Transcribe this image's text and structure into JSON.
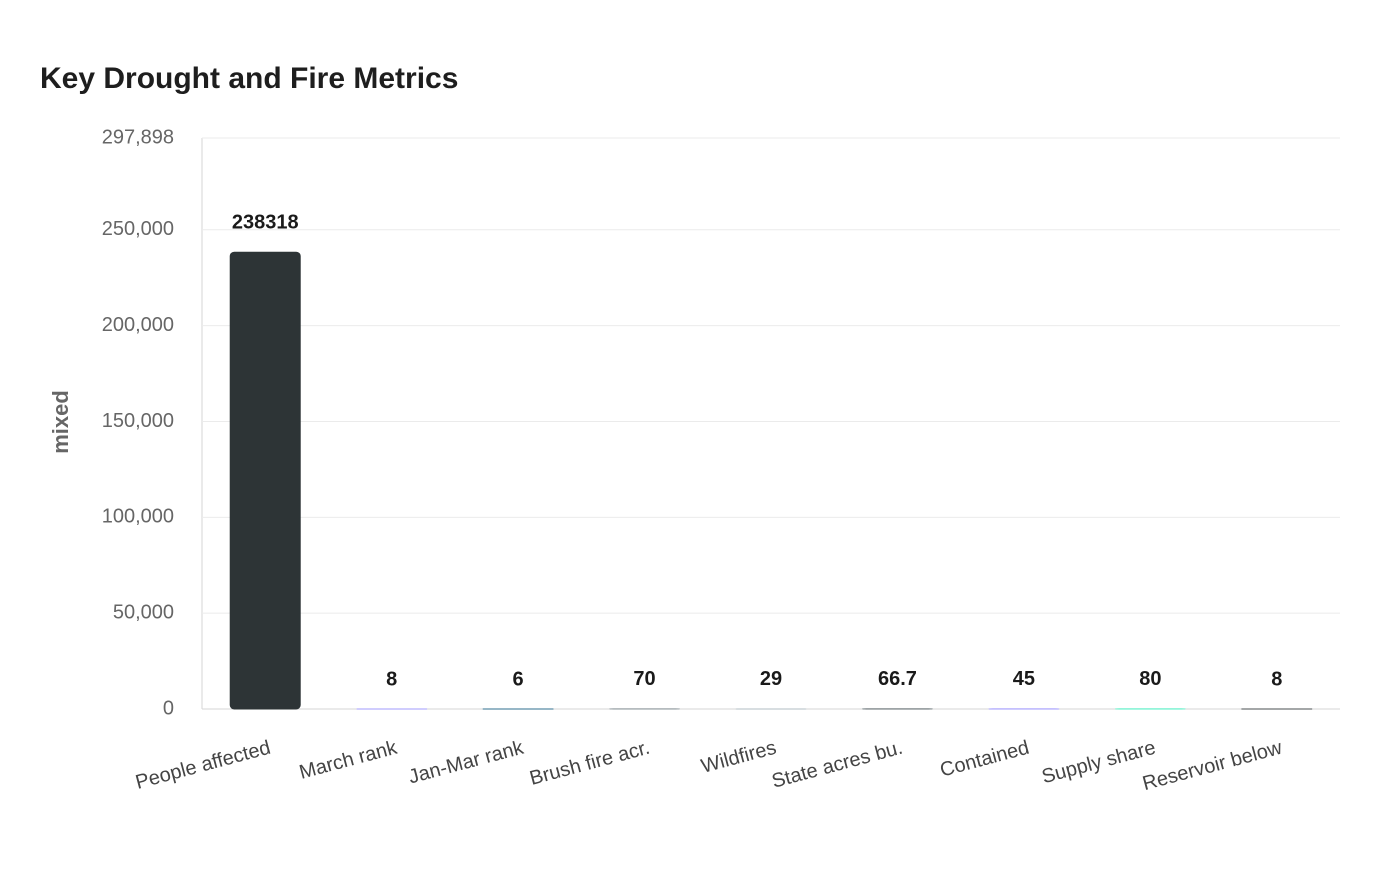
{
  "chart_data": {
    "type": "bar",
    "title": "Key Drought and Fire Metrics",
    "y_label": "mixed",
    "categories": [
      "People affected",
      "March rank",
      "Jan-Mar rank",
      "Brush fire acr.",
      "Wildfires",
      "State acres bu.",
      "Contained",
      "Supply share",
      "Reservoir below"
    ],
    "values": [
      238318,
      8,
      6,
      70,
      29,
      66.7,
      45,
      80,
      8
    ],
    "colors": [
      "#2d3436",
      "#a29bfe",
      "#2f6f8f",
      "#8a9499",
      "#b2bec3",
      "#636e72",
      "#a29bfe",
      "#55efc4",
      "#4a4f52"
    ],
    "ylim": [
      0,
      297898
    ],
    "yticks": [
      0,
      {
        "value": 50000,
        "label": "50,000"
      },
      {
        "value": 100000,
        "label": "100,000"
      },
      {
        "value": 150000,
        "label": "150,000"
      },
      {
        "value": 200000,
        "label": "200,000"
      },
      {
        "value": 250000,
        "label": "250,000"
      },
      {
        "value": 297898,
        "label": "297,898"
      }
    ],
    "grid": true
  }
}
